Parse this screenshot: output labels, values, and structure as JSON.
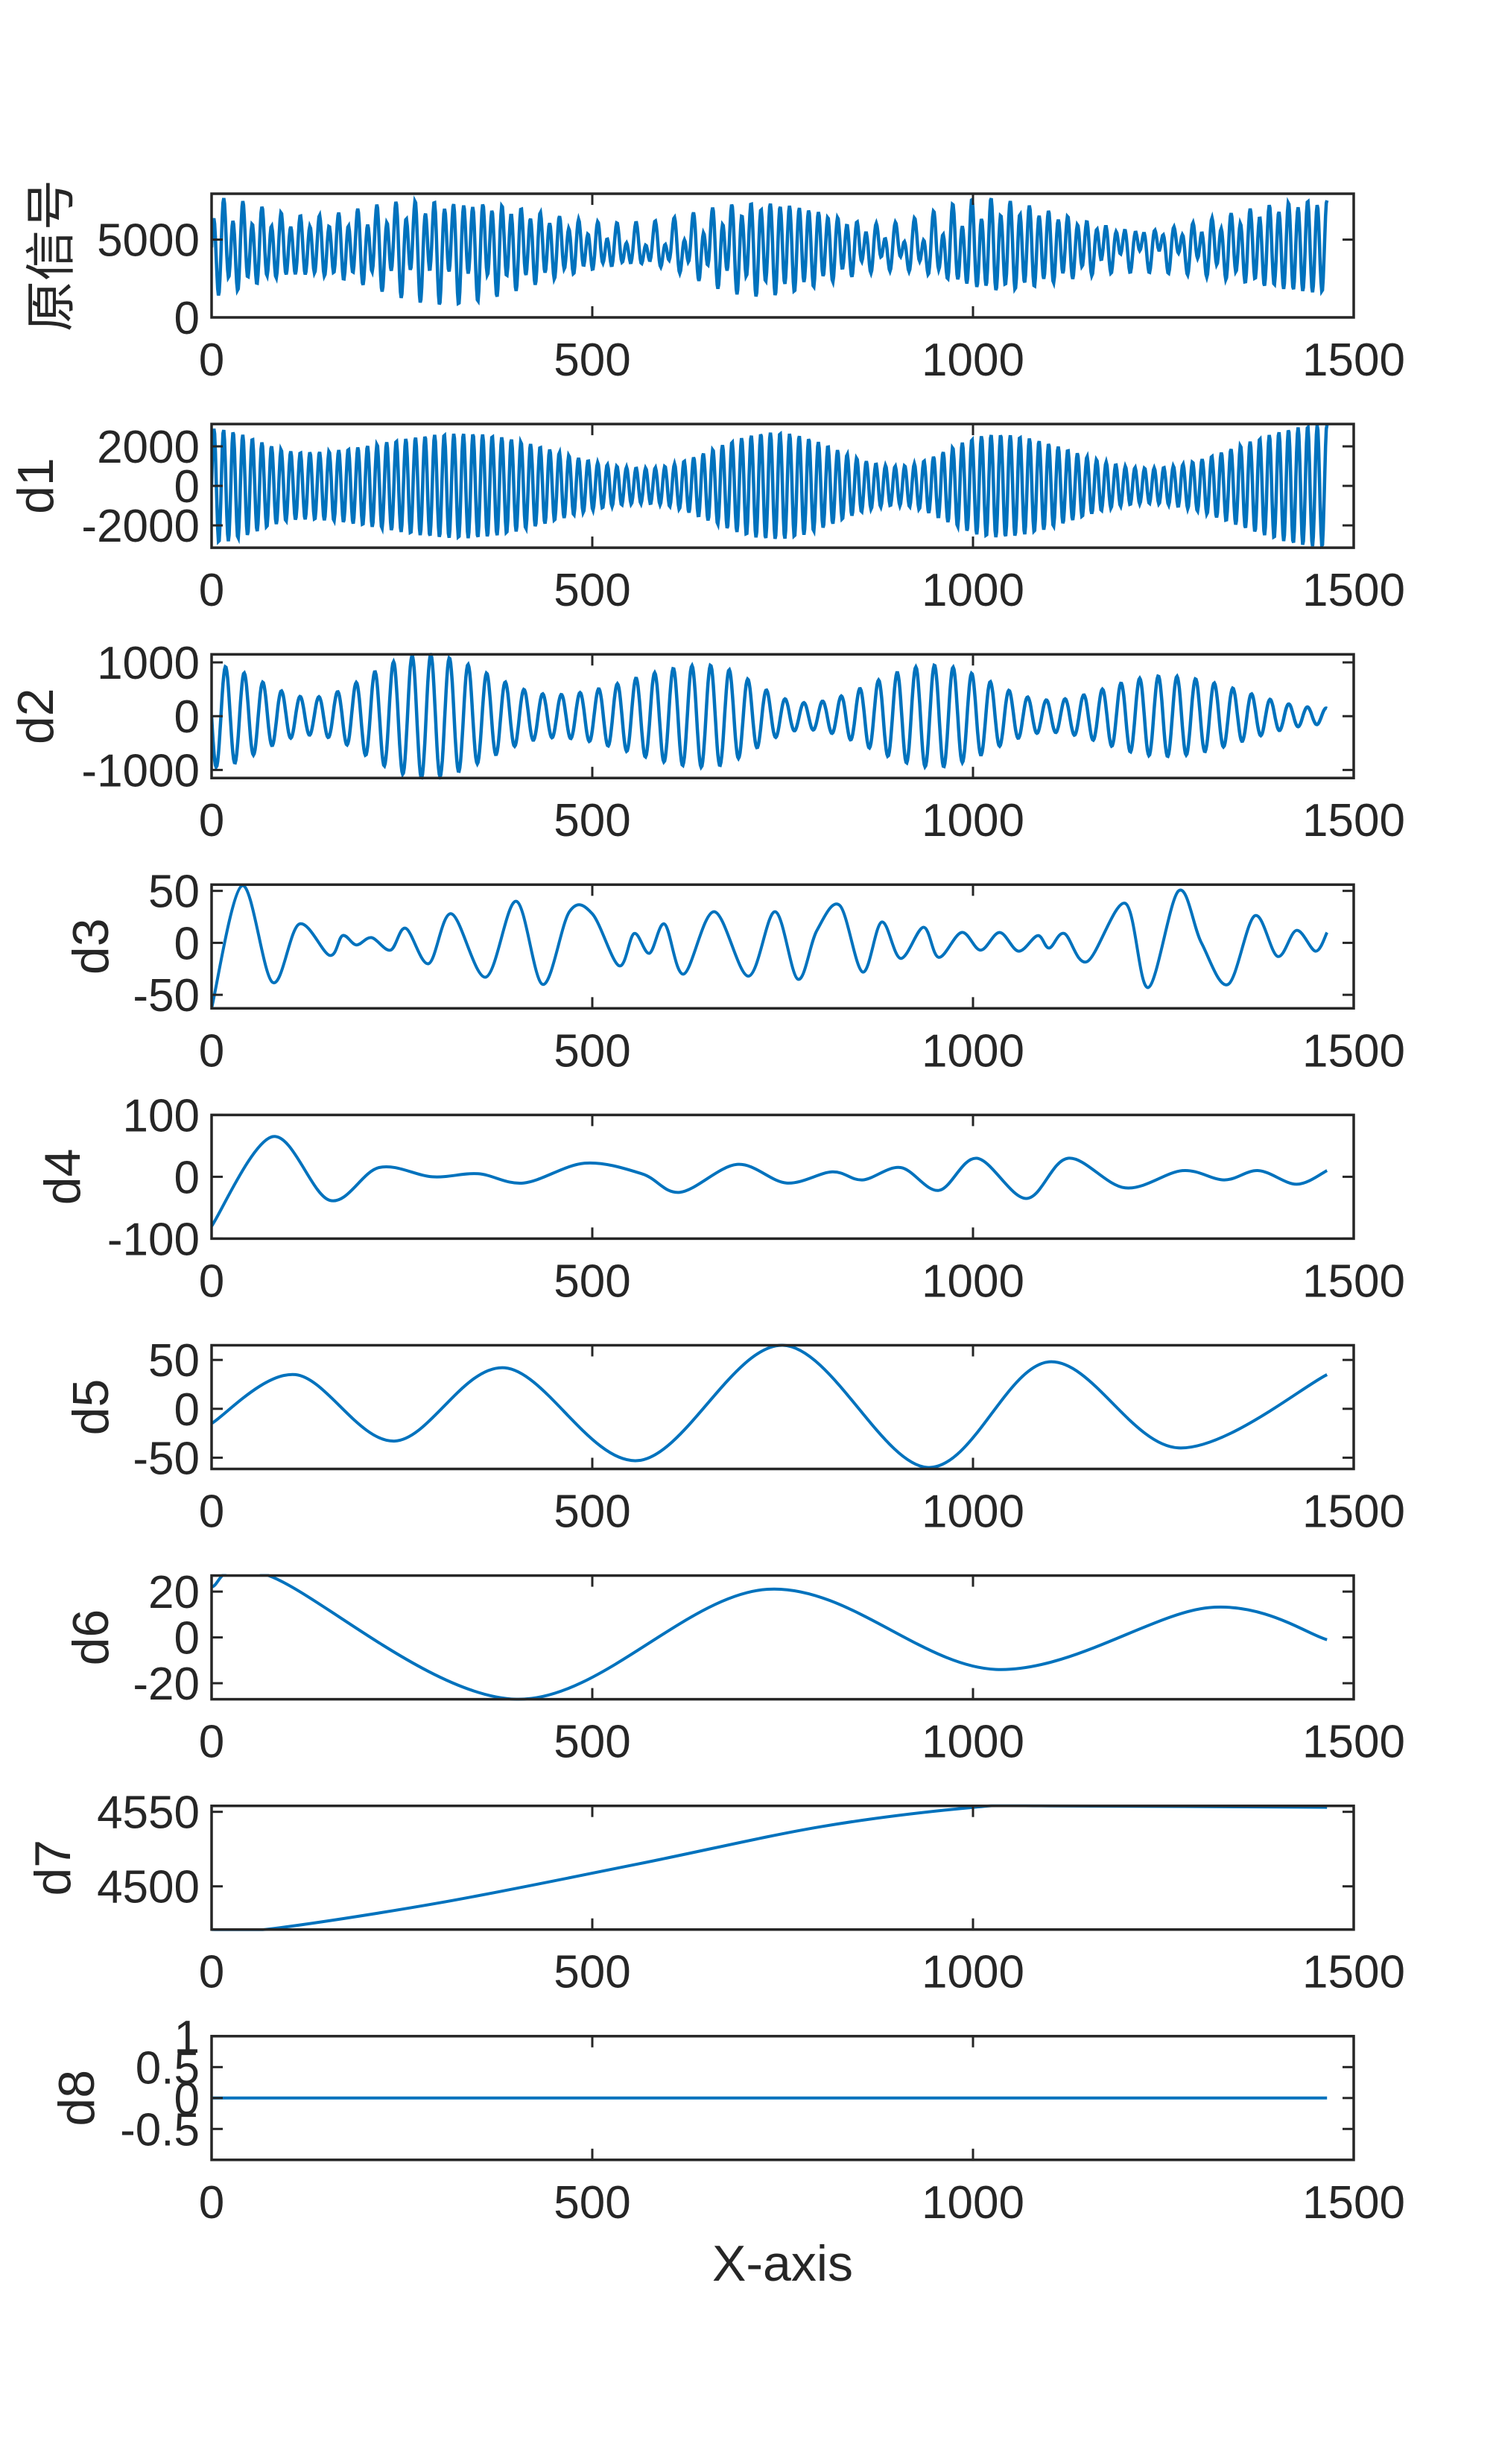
{
  "figure": {
    "background": "#ffffff",
    "line_color": "#0072BD",
    "axes_color": "#262626",
    "xlabel": "X-axis"
  },
  "chart_data": {
    "type": "line",
    "layout": "9 stacked subplots sharing x range",
    "xlabel": "X-axis",
    "xlim": [
      0,
      1500
    ],
    "xticks": [
      0,
      500,
      1000,
      1500
    ],
    "xtick_labels": [
      "0",
      "500",
      "1000",
      "1500"
    ],
    "n_samples": 1465,
    "grid": false,
    "legend": null,
    "subplots": [
      {
        "ylabel": "原信号",
        "ylim": [
          0,
          7950
        ],
        "yticks": [
          0,
          5000
        ],
        "ytick_labels": [
          "0",
          "5000"
        ],
        "kind": "oscillatory",
        "offset": 4500,
        "components": [
          {
            "period": 12.6,
            "phase": 0.0,
            "envelope": [
              [
                0,
                2500
              ],
              [
                120,
                1700
              ],
              [
                330,
                2650
              ],
              [
                570,
                900
              ],
              [
                740,
                2700
              ],
              [
                900,
                1000
              ],
              [
                1030,
                2600
              ],
              [
                1230,
                900
              ],
              [
                1465,
                2900
              ]
            ]
          },
          {
            "period": 24.5,
            "phase": 3.14,
            "envelope": [
              [
                0,
                900
              ],
              [
                130,
                350
              ],
              [
                280,
                1150
              ],
              [
                450,
                400
              ],
              [
                650,
                950
              ],
              [
                780,
                250
              ],
              [
                950,
                900
              ],
              [
                1100,
                300
              ],
              [
                1250,
                750
              ],
              [
                1465,
                150
              ]
            ]
          }
        ]
      },
      {
        "ylabel": "d1",
        "ylim": [
          -3130,
          3130
        ],
        "yticks": [
          -2000,
          0,
          2000
        ],
        "ytick_labels": [
          "-2000",
          "0",
          "2000"
        ],
        "kind": "oscillatory",
        "offset": 0,
        "components": [
          {
            "period": 12.6,
            "phase": 0.0,
            "envelope": [
              [
                0,
                2900
              ],
              [
                120,
                1700
              ],
              [
                330,
                2650
              ],
              [
                570,
                900
              ],
              [
                740,
                2700
              ],
              [
                900,
                1000
              ],
              [
                1030,
                2600
              ],
              [
                1230,
                900
              ],
              [
                1465,
                3100
              ]
            ]
          }
        ]
      },
      {
        "ylabel": "d2",
        "ylim": [
          -1150,
          1150
        ],
        "yticks": [
          -1000,
          0,
          1000
        ],
        "ytick_labels": [
          "-1000",
          "0",
          "1000"
        ],
        "kind": "oscillatory",
        "offset": 0,
        "components": [
          {
            "period": 24.5,
            "phase": 3.14,
            "envelope": [
              [
                0,
                950
              ],
              [
                130,
                350
              ],
              [
                280,
                1150
              ],
              [
                450,
                400
              ],
              [
                650,
                950
              ],
              [
                780,
                250
              ],
              [
                950,
                950
              ],
              [
                1100,
                300
              ],
              [
                1250,
                750
              ],
              [
                1465,
                150
              ]
            ]
          }
        ]
      },
      {
        "ylabel": "d3",
        "ylim": [
          -63,
          56
        ],
        "yticks": [
          -50,
          0,
          50
        ],
        "ytick_labels": [
          "-50",
          "0",
          "50"
        ],
        "kind": "smooth",
        "points": [
          [
            0,
            -63
          ],
          [
            40,
            55
          ],
          [
            80,
            -38
          ],
          [
            115,
            18
          ],
          [
            155,
            -12
          ],
          [
            172,
            7
          ],
          [
            190,
            -2
          ],
          [
            210,
            5
          ],
          [
            235,
            -7
          ],
          [
            255,
            14
          ],
          [
            285,
            -20
          ],
          [
            315,
            28
          ],
          [
            360,
            -33
          ],
          [
            400,
            40
          ],
          [
            435,
            -40
          ],
          [
            470,
            30
          ],
          [
            500,
            28
          ],
          [
            535,
            -22
          ],
          [
            555,
            9
          ],
          [
            575,
            -10
          ],
          [
            595,
            18
          ],
          [
            620,
            -30
          ],
          [
            660,
            30
          ],
          [
            705,
            -32
          ],
          [
            740,
            30
          ],
          [
            770,
            -35
          ],
          [
            795,
            12
          ],
          [
            825,
            36
          ],
          [
            855,
            -28
          ],
          [
            880,
            20
          ],
          [
            905,
            -15
          ],
          [
            935,
            15
          ],
          [
            955,
            -14
          ],
          [
            985,
            10
          ],
          [
            1010,
            -7
          ],
          [
            1035,
            10
          ],
          [
            1060,
            -8
          ],
          [
            1085,
            7
          ],
          [
            1100,
            -5
          ],
          [
            1120,
            9
          ],
          [
            1150,
            -18
          ],
          [
            1200,
            38
          ],
          [
            1230,
            -43
          ],
          [
            1270,
            50
          ],
          [
            1300,
            0
          ],
          [
            1335,
            -40
          ],
          [
            1370,
            26
          ],
          [
            1400,
            -13
          ],
          [
            1425,
            12
          ],
          [
            1450,
            -8
          ],
          [
            1465,
            10
          ]
        ]
      },
      {
        "ylabel": "d4",
        "ylim": [
          -100,
          100
        ],
        "yticks": [
          -100,
          0,
          100
        ],
        "ytick_labels": [
          "-100",
          "0",
          "100"
        ],
        "kind": "smooth",
        "points": [
          [
            0,
            -80
          ],
          [
            80,
            65
          ],
          [
            155,
            -38
          ],
          [
            220,
            15
          ],
          [
            290,
            0
          ],
          [
            350,
            5
          ],
          [
            410,
            -10
          ],
          [
            490,
            22
          ],
          [
            565,
            5
          ],
          [
            615,
            -25
          ],
          [
            690,
            20
          ],
          [
            755,
            -10
          ],
          [
            815,
            8
          ],
          [
            855,
            -5
          ],
          [
            905,
            15
          ],
          [
            955,
            -22
          ],
          [
            1005,
            30
          ],
          [
            1070,
            -35
          ],
          [
            1125,
            30
          ],
          [
            1200,
            -18
          ],
          [
            1275,
            10
          ],
          [
            1330,
            -5
          ],
          [
            1375,
            10
          ],
          [
            1425,
            -12
          ],
          [
            1465,
            10
          ]
        ]
      },
      {
        "ylabel": "d5",
        "ylim": [
          -61.5,
          65
        ],
        "yticks": [
          -50,
          0,
          50
        ],
        "ytick_labels": [
          "-50",
          "0",
          "50"
        ],
        "kind": "smooth",
        "points": [
          [
            0,
            -15
          ],
          [
            110,
            35
          ],
          [
            240,
            -33
          ],
          [
            385,
            42
          ],
          [
            560,
            -53
          ],
          [
            750,
            65
          ],
          [
            940,
            -60
          ],
          [
            1100,
            48
          ],
          [
            1270,
            -40
          ],
          [
            1465,
            35
          ]
        ]
      },
      {
        "ylabel": "d6",
        "ylim": [
          -27,
          27
        ],
        "yticks": [
          -20,
          0,
          20
        ],
        "ytick_labels": [
          "-20",
          "0",
          "20"
        ],
        "kind": "smooth",
        "points": [
          [
            0,
            22
          ],
          [
            75,
            27
          ],
          [
            400,
            -27
          ],
          [
            730,
            21
          ],
          [
            1030,
            -14
          ],
          [
            1310,
            13
          ],
          [
            1465,
            -1
          ]
        ]
      },
      {
        "ylabel": "d7",
        "ylim": [
          4471,
          4554
        ],
        "yticks": [
          4500,
          4550
        ],
        "ytick_labels": [
          "4500",
          "4550"
        ],
        "kind": "smooth",
        "points": [
          [
            0,
            4471
          ],
          [
            70,
            4471
          ],
          [
            300,
            4489
          ],
          [
            560,
            4515
          ],
          [
            800,
            4540
          ],
          [
            1000,
            4553
          ],
          [
            1100,
            4554
          ],
          [
            1465,
            4553
          ]
        ]
      },
      {
        "ylabel": "d8",
        "ylim": [
          -1,
          1
        ],
        "yticks": [
          -0.5,
          0,
          0.5,
          1
        ],
        "ytick_labels": [
          "-0.5",
          "0",
          "0.5",
          "1"
        ],
        "kind": "smooth",
        "points": [
          [
            0,
            0
          ],
          [
            1465,
            0
          ]
        ]
      }
    ]
  }
}
